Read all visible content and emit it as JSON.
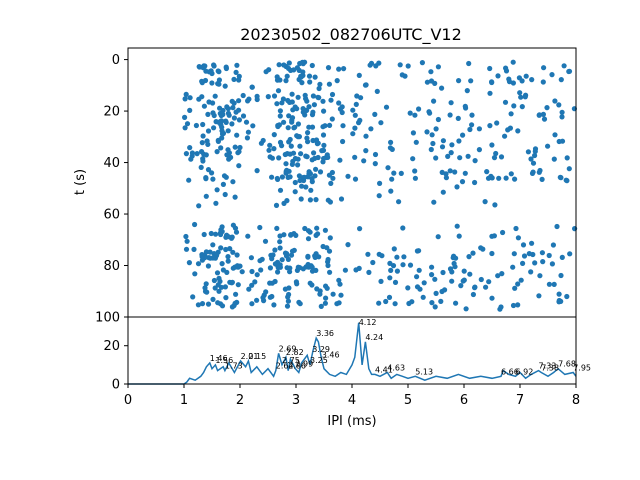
{
  "chart_data": [
    {
      "type": "scatter",
      "title": "20230502_082706UTC_V12",
      "xlabel": "",
      "ylabel": "t (s)",
      "xlim": [
        0,
        8
      ],
      "ylim": [
        100,
        -4.5
      ],
      "y_inverted": true,
      "y_ticks": [
        "0",
        "20",
        "40",
        "60",
        "80",
        "100"
      ],
      "color": "#1f77b4",
      "clusters": [
        {
          "t_range": [
            2,
            58
          ],
          "ipi_range": [
            1.0,
            8.0
          ],
          "dense_rows_t": [
            3,
            8,
            15,
            20,
            25,
            28,
            33,
            37,
            45
          ]
        },
        {
          "t_range": [
            64,
            97
          ],
          "ipi_range": [
            1.0,
            8.0
          ],
          "dense_rows_t": [
            67,
            75,
            78,
            82,
            88,
            93
          ]
        }
      ],
      "note_dense_x": [
        1.5,
        1.8,
        2.7,
        3.0,
        3.4
      ]
    },
    {
      "type": "line",
      "xlabel": "IPI (ms)",
      "ylabel": "",
      "xlim": [
        0,
        8
      ],
      "ylim": [
        0,
        35
      ],
      "x_ticks": [
        "0",
        "1",
        "2",
        "3",
        "4",
        "5",
        "6",
        "7",
        "8"
      ],
      "y_ticks": [
        "0",
        "20"
      ],
      "color": "#1f77b4",
      "x": [
        0,
        0.5,
        1.0,
        1.05,
        1.1,
        1.2,
        1.3,
        1.35,
        1.4,
        1.46,
        1.5,
        1.56,
        1.6,
        1.7,
        1.73,
        1.8,
        1.9,
        2.01,
        2.1,
        2.15,
        2.2,
        2.3,
        2.4,
        2.5,
        2.6,
        2.64,
        2.69,
        2.75,
        2.82,
        2.86,
        2.9,
        2.99,
        3.05,
        3.1,
        3.2,
        3.25,
        3.3,
        3.36,
        3.4,
        3.45,
        3.5,
        3.6,
        3.7,
        3.8,
        3.9,
        4.0,
        4.05,
        4.12,
        4.18,
        4.24,
        4.3,
        4.35,
        4.41,
        4.5,
        4.63,
        4.7,
        4.8,
        4.9,
        5.0,
        5.13,
        5.3,
        5.5,
        5.7,
        5.9,
        6.1,
        6.3,
        6.5,
        6.66,
        6.7,
        6.8,
        6.92,
        7.0,
        7.1,
        7.2,
        7.33,
        7.38,
        7.5,
        7.6,
        7.68,
        7.8,
        7.95,
        8.0
      ],
      "y": [
        0,
        0,
        0,
        1,
        3,
        2,
        4,
        6,
        9,
        11,
        8,
        10,
        7,
        9,
        7,
        11,
        6,
        12,
        9,
        12,
        6,
        9,
        5,
        8,
        4,
        7,
        16,
        10,
        14,
        7,
        13,
        8,
        6,
        11,
        15,
        10,
        17,
        24,
        22,
        14,
        8,
        5,
        4,
        6,
        5,
        10,
        14,
        32,
        10,
        22,
        8,
        5,
        5,
        4,
        6,
        3,
        5,
        4,
        3,
        4,
        2,
        4,
        3,
        5,
        3,
        4,
        3,
        4,
        7,
        5,
        4,
        6,
        3,
        5,
        7,
        6,
        4,
        6,
        8,
        5,
        6,
        4
      ],
      "annotations": [
        "1.46",
        "1.56",
        "1.73",
        "2.01",
        "2.15",
        "2.64",
        "2.69",
        "2.75",
        "2.82",
        "2.86",
        "2.99",
        "3.25",
        "3.36",
        "3.29",
        "3.46",
        "4.12",
        "4.24",
        "4.41",
        "4.63",
        "5.13",
        "6.66",
        "6.92",
        "7.33",
        "7.38",
        "7.68",
        "7.95"
      ]
    }
  ]
}
